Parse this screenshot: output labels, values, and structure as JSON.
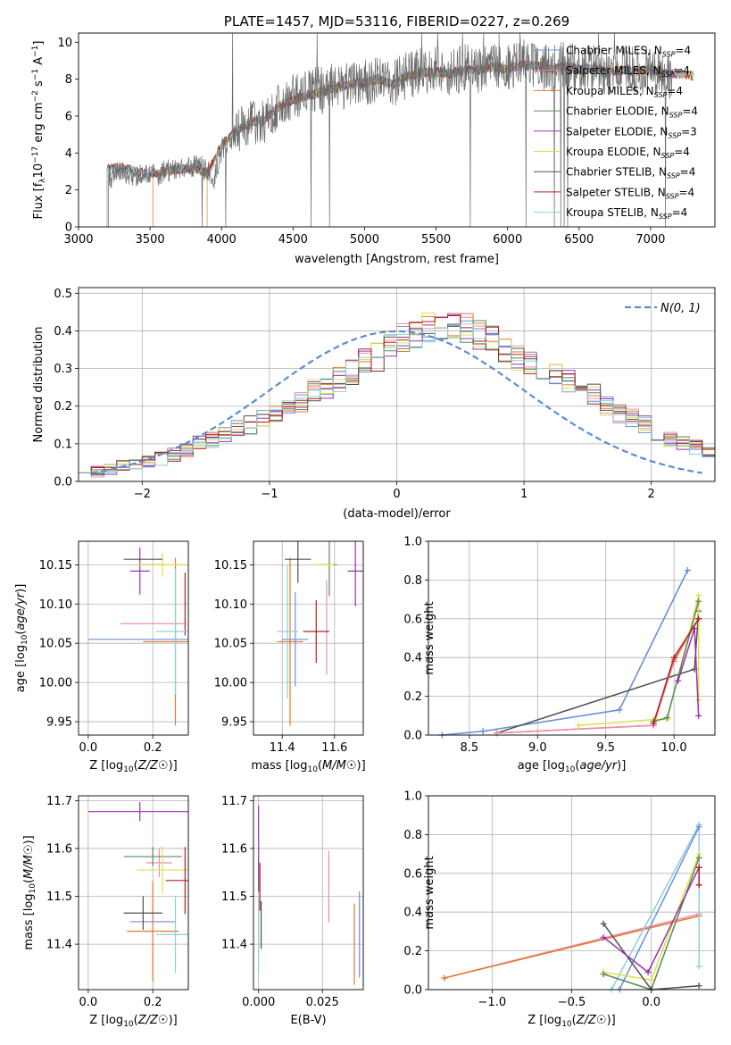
{
  "colors": {
    "chabrier_miles": "#6d8fdb",
    "salpeter_miles": "#f08cae",
    "kroupa_miles": "#e07a2e",
    "chabrier_elodie": "#5a8a5a",
    "salpeter_elodie": "#9b30b0",
    "kroupa_elodie": "#dede4a",
    "chabrier_stelib": "#505050",
    "salpeter_stelib": "#b02020",
    "kroupa_stelib": "#8cd0d8",
    "normal": "#5b8bd6"
  },
  "chart_data": [
    {
      "id": "spectrum",
      "type": "line",
      "title": "PLATE=1457, MJD=53116, FIBERID=0227, z=0.269",
      "xlabel": "wavelength [Angstrom, rest frame]",
      "ylabel": "Flux [f_λ 10^-17 erg cm^-2 s^-1 A^-1]",
      "xlim": [
        3000,
        7450
      ],
      "ylim": [
        0,
        10.5
      ],
      "xticks": [
        3000,
        3500,
        4000,
        4500,
        5000,
        5500,
        6000,
        6500,
        7000
      ],
      "yticks": [
        0,
        2,
        4,
        6,
        8,
        10
      ],
      "legend_position": "right",
      "legend": [
        {
          "key": "chabrier_miles",
          "label": "Chabrier MILES, N",
          "sub": "SSP",
          "tail": "=4"
        },
        {
          "key": "salpeter_miles",
          "label": "Salpeter MILES, N",
          "sub": "SSP",
          "tail": "=4"
        },
        {
          "key": "kroupa_miles",
          "label": "Kroupa MILES, N",
          "sub": "SSP",
          "tail": "=4"
        },
        {
          "key": "chabrier_elodie",
          "label": "Chabrier ELODIE, N",
          "sub": "SSP",
          "tail": "=4"
        },
        {
          "key": "salpeter_elodie",
          "label": "Salpeter ELODIE, N",
          "sub": "SSP",
          "tail": "=3"
        },
        {
          "key": "kroupa_elodie",
          "label": "Kroupa ELODIE, N",
          "sub": "SSP",
          "tail": "=4"
        },
        {
          "key": "chabrier_stelib",
          "label": "Chabrier STELIB, N",
          "sub": "SSP",
          "tail": "=4"
        },
        {
          "key": "salpeter_stelib",
          "label": "Salpeter STELIB, N",
          "sub": "SSP",
          "tail": "=4"
        },
        {
          "key": "kroupa_stelib",
          "label": "Kroupa STELIB, N",
          "sub": "SSP",
          "tail": "=4"
        }
      ],
      "data_continuum": [
        [
          3210,
          2.6
        ],
        [
          3300,
          2.9
        ],
        [
          3400,
          2.8
        ],
        [
          3500,
          2.7
        ],
        [
          3600,
          3.0
        ],
        [
          3700,
          3.1
        ],
        [
          3800,
          3.3
        ],
        [
          3870,
          3.2
        ],
        [
          3950,
          2.6
        ],
        [
          4000,
          4.2
        ],
        [
          4100,
          5.0
        ],
        [
          4200,
          5.6
        ],
        [
          4300,
          5.8
        ],
        [
          4400,
          6.6
        ],
        [
          4500,
          7.0
        ],
        [
          4600,
          7.3
        ],
        [
          4700,
          7.4
        ],
        [
          4800,
          7.6
        ],
        [
          4900,
          7.7
        ],
        [
          5000,
          7.8
        ],
        [
          5100,
          8.0
        ],
        [
          5200,
          7.8
        ],
        [
          5300,
          8.2
        ],
        [
          5400,
          8.4
        ],
        [
          5500,
          8.5
        ],
        [
          5600,
          8.3
        ],
        [
          5700,
          8.6
        ],
        [
          5800,
          8.5
        ],
        [
          5900,
          8.8
        ],
        [
          6000,
          8.6
        ],
        [
          6100,
          8.9
        ],
        [
          6200,
          8.7
        ],
        [
          6300,
          8.6
        ],
        [
          6400,
          8.8
        ],
        [
          6500,
          8.5
        ],
        [
          6600,
          8.7
        ],
        [
          6700,
          8.4
        ],
        [
          6800,
          8.6
        ],
        [
          6900,
          8.4
        ],
        [
          7000,
          8.5
        ],
        [
          7100,
          8.3
        ],
        [
          7150,
          8.2
        ]
      ],
      "model_continuum": [
        [
          3200,
          3.2
        ],
        [
          3300,
          3.2
        ],
        [
          3400,
          3.0
        ],
        [
          3500,
          2.9
        ],
        [
          3600,
          3.0
        ],
        [
          3700,
          3.1
        ],
        [
          3800,
          3.2
        ],
        [
          3900,
          2.9
        ],
        [
          4000,
          4.4
        ],
        [
          4100,
          5.2
        ],
        [
          4200,
          5.7
        ],
        [
          4300,
          5.8
        ],
        [
          4400,
          6.5
        ],
        [
          4500,
          6.9
        ],
        [
          4600,
          7.1
        ],
        [
          4700,
          7.3
        ],
        [
          4800,
          7.6
        ],
        [
          4900,
          7.7
        ],
        [
          5000,
          7.8
        ],
        [
          5100,
          8.0
        ],
        [
          5200,
          7.7
        ],
        [
          5300,
          8.2
        ],
        [
          5400,
          8.3
        ],
        [
          5500,
          8.4
        ],
        [
          5600,
          8.3
        ],
        [
          5700,
          8.5
        ],
        [
          5800,
          8.5
        ],
        [
          5900,
          8.7
        ],
        [
          6000,
          8.5
        ],
        [
          6100,
          8.8
        ],
        [
          6200,
          8.7
        ],
        [
          6300,
          8.6
        ],
        [
          6400,
          8.7
        ],
        [
          6500,
          8.5
        ],
        [
          6600,
          8.6
        ],
        [
          6700,
          8.4
        ],
        [
          6800,
          8.5
        ],
        [
          6900,
          8.4
        ],
        [
          7000,
          8.5
        ],
        [
          7100,
          8.3
        ],
        [
          7200,
          8.3
        ],
        [
          7300,
          8.2
        ]
      ]
    },
    {
      "id": "residual_hist",
      "type": "histogram",
      "xlabel": "(data-model)/error",
      "ylabel": "Normed distribution",
      "xlim": [
        -2.5,
        2.5
      ],
      "ylim": [
        0,
        0.515
      ],
      "xticks": [
        -2,
        -1,
        0,
        1,
        2
      ],
      "yticks": [
        0.0,
        0.1,
        0.2,
        0.3,
        0.4,
        0.5
      ],
      "grid": true,
      "legend_position": "top-right",
      "legend_label": "N(0, 1)",
      "bin_edges_from": -2.5,
      "bin_width": 0.1,
      "series_representative": [
        0.03,
        0.025,
        0.03,
        0.04,
        0.05,
        0.055,
        0.06,
        0.07,
        0.085,
        0.1,
        0.11,
        0.125,
        0.14,
        0.15,
        0.17,
        0.18,
        0.2,
        0.21,
        0.24,
        0.25,
        0.27,
        0.29,
        0.32,
        0.33,
        0.36,
        0.38,
        0.39,
        0.41,
        0.4,
        0.42,
        0.41,
        0.39,
        0.38,
        0.35,
        0.33,
        0.32,
        0.3,
        0.28,
        0.27,
        0.25,
        0.23,
        0.2,
        0.18,
        0.17,
        0.15,
        0.13,
        0.11,
        0.1,
        0.09,
        0.08
      ]
    },
    {
      "id": "age_vs_Z",
      "type": "errorbar",
      "xlabel": "Z [log10(Z/Z☉)]",
      "ylabel": "age [log10(age/yr)]",
      "xlim": [
        -0.03,
        0.31
      ],
      "ylim": [
        9.933,
        10.18
      ],
      "xticks": [
        0.0,
        0.2
      ],
      "yticks": [
        9.95,
        10.0,
        10.05,
        10.1,
        10.15
      ],
      "points": [
        {
          "key": "chabrier_miles",
          "x": 0.16,
          "xerr": 0.16,
          "y": 10.055,
          "yerr": 0.0
        },
        {
          "key": "salpeter_miles",
          "x": 0.2,
          "xerr": 0.1,
          "y": 10.075,
          "yerr": 0.0
        },
        {
          "key": "kroupa_miles",
          "x": 0.27,
          "xerr": 0.1,
          "y": 10.052,
          "yerr": 0.107
        },
        {
          "key": "chabrier_elodie",
          "x": 0.2,
          "xerr": 0.04,
          "y": 10.15,
          "yerr": 0.0
        },
        {
          "key": "salpeter_elodie",
          "x": 0.16,
          "xerr": 0.03,
          "y": 10.142,
          "yerr": 0.03
        },
        {
          "key": "kroupa_elodie",
          "x": 0.23,
          "xerr": 0.08,
          "y": 10.15,
          "yerr": 0.015
        },
        {
          "key": "chabrier_stelib",
          "x": 0.17,
          "xerr": 0.06,
          "y": 10.157,
          "yerr": 0.0
        },
        {
          "key": "salpeter_stelib",
          "x": 0.3,
          "xerr": 0.0,
          "y": 10.1,
          "yerr": 0.04
        },
        {
          "key": "kroupa_stelib",
          "x": 0.27,
          "xerr": 0.06,
          "y": 10.065,
          "yerr": 0.08
        }
      ]
    },
    {
      "id": "age_vs_mass",
      "type": "errorbar",
      "xlabel": "mass [log10(M/M☉)]",
      "ylabel": "",
      "xlim": [
        11.29,
        11.71
      ],
      "ylim": [
        9.933,
        10.18
      ],
      "xticks": [
        11.4,
        11.6
      ],
      "yticks": [
        9.95,
        10.0,
        10.05,
        10.1,
        10.15
      ],
      "points": [
        {
          "key": "chabrier_miles",
          "x": 11.45,
          "xerr": 0.05,
          "y": 10.055,
          "yerr": 0.06
        },
        {
          "key": "salpeter_miles",
          "x": 11.57,
          "xerr": 0.0,
          "y": 10.07,
          "yerr": 0.06
        },
        {
          "key": "kroupa_miles",
          "x": 11.43,
          "xerr": 0.05,
          "y": 10.052,
          "yerr": 0.107
        },
        {
          "key": "chabrier_elodie",
          "x": 11.58,
          "xerr": 0.03,
          "y": 10.15,
          "yerr": 0.04
        },
        {
          "key": "salpeter_elodie",
          "x": 11.68,
          "xerr": 0.03,
          "y": 10.142,
          "yerr": 0.045
        },
        {
          "key": "kroupa_elodie",
          "x": 11.56,
          "xerr": 0.04,
          "y": 10.15,
          "yerr": 0.0
        },
        {
          "key": "chabrier_stelib",
          "x": 11.46,
          "xerr": 0.05,
          "y": 10.157,
          "yerr": 0.03
        },
        {
          "key": "salpeter_stelib",
          "x": 11.53,
          "xerr": 0.05,
          "y": 10.065,
          "yerr": 0.04
        },
        {
          "key": "kroupa_stelib",
          "x": 11.42,
          "xerr": 0.04,
          "y": 10.065,
          "yerr": 0.085
        }
      ]
    },
    {
      "id": "mass_weight_vs_age",
      "type": "line",
      "xlabel": "age [log10(age/yr)]",
      "ylabel": "mass weight",
      "xlim": [
        8.2,
        10.3
      ],
      "ylim": [
        0,
        1
      ],
      "xticks": [
        8.5,
        9.0,
        9.5,
        10.0
      ],
      "yticks": [
        0.0,
        0.2,
        0.4,
        0.6,
        0.8,
        1.0
      ],
      "grid": true,
      "series": [
        {
          "key": "kroupa_stelib",
          "x": [
            8.3,
            8.6,
            9.6,
            10.1
          ],
          "y": [
            0.0,
            0.02,
            0.13,
            0.85
          ]
        },
        {
          "key": "chabrier_miles",
          "x": [
            8.3,
            8.6,
            9.6,
            10.1
          ],
          "y": [
            0.0,
            0.02,
            0.13,
            0.85
          ]
        },
        {
          "key": "chabrier_stelib",
          "x": [
            8.7,
            10.15,
            10.18
          ],
          "y": [
            0.01,
            0.34,
            0.64
          ]
        },
        {
          "key": "kroupa_miles",
          "x": [
            8.7,
            9.85,
            10.0,
            10.18
          ],
          "y": [
            0.01,
            0.05,
            0.38,
            0.6
          ]
        },
        {
          "key": "salpeter_miles",
          "x": [
            8.7,
            9.85,
            10.0,
            10.18
          ],
          "y": [
            0.01,
            0.05,
            0.39,
            0.6
          ]
        },
        {
          "key": "kroupa_elodie",
          "x": [
            9.3,
            9.85,
            9.95,
            10.18,
            10.18
          ],
          "y": [
            0.05,
            0.08,
            0.08,
            0.72,
            0.18
          ]
        },
        {
          "key": "chabrier_elodie",
          "x": [
            9.85,
            9.95,
            10.18
          ],
          "y": [
            0.07,
            0.09,
            0.69
          ]
        },
        {
          "key": "salpeter_elodie",
          "x": [
            10.03,
            10.15,
            10.18
          ],
          "y": [
            0.28,
            0.55,
            0.1
          ]
        },
        {
          "key": "salpeter_stelib",
          "x": [
            9.85,
            10.0,
            10.18
          ],
          "y": [
            0.06,
            0.4,
            0.6
          ]
        }
      ]
    },
    {
      "id": "mass_vs_Z",
      "type": "errorbar",
      "xlabel": "Z [log10(Z/Z☉)]",
      "ylabel": "mass [log10(M/M☉)]",
      "xlim": [
        -0.03,
        0.31
      ],
      "ylim": [
        11.305,
        11.71
      ],
      "xticks": [
        0.0,
        0.2
      ],
      "yticks": [
        11.4,
        11.5,
        11.6,
        11.7
      ],
      "points": [
        {
          "key": "chabrier_miles",
          "x": 0.2,
          "xerr": 0.07,
          "y": 11.447,
          "yerr": 0.0
        },
        {
          "key": "salpeter_miles",
          "x": 0.22,
          "xerr": 0.04,
          "y": 11.57,
          "yerr": 0.03
        },
        {
          "key": "kroupa_miles",
          "x": 0.2,
          "xerr": 0.08,
          "y": 11.427,
          "yerr": 0.105
        },
        {
          "key": "chabrier_elodie",
          "x": 0.2,
          "xerr": 0.09,
          "y": 11.583,
          "yerr": 0.02
        },
        {
          "key": "salpeter_elodie",
          "x": 0.16,
          "xerr": 0.16,
          "y": 11.677,
          "yerr": 0.02
        },
        {
          "key": "kroupa_elodie",
          "x": 0.23,
          "xerr": 0.08,
          "y": 11.555,
          "yerr": 0.05
        },
        {
          "key": "chabrier_stelib",
          "x": 0.17,
          "xerr": 0.06,
          "y": 11.465,
          "yerr": 0.035
        },
        {
          "key": "salpeter_stelib",
          "x": 0.3,
          "xerr": 0.06,
          "y": 11.533,
          "yerr": 0.07
        },
        {
          "key": "kroupa_stelib",
          "x": 0.27,
          "xerr": 0.06,
          "y": 11.42,
          "yerr": 0.08
        }
      ]
    },
    {
      "id": "mass_vs_ebv",
      "type": "errorbar",
      "xlabel": "E(B-V)",
      "ylabel": "",
      "xlim": [
        -0.002,
        0.041
      ],
      "ylim": [
        11.305,
        11.71
      ],
      "xticks": [
        0.0,
        0.025
      ],
      "xticklabels": [
        "0.000",
        "0.025"
      ],
      "yticks": [
        11.4,
        11.5,
        11.6,
        11.7
      ],
      "points": [
        {
          "key": "salpeter_elodie",
          "x": 0.0,
          "xerr": 0.0,
          "y": 11.6,
          "yerr": 0.09
        },
        {
          "key": "salpeter_stelib",
          "x": 0.0005,
          "xerr": 0.0,
          "y": 11.52,
          "yerr": 0.05
        },
        {
          "key": "kroupa_stelib",
          "x": 0.0,
          "xerr": 0.0,
          "y": 11.42,
          "yerr": 0.08
        },
        {
          "key": "chabrier_stelib",
          "x": 0.001,
          "xerr": 0.0,
          "y": 11.44,
          "yerr": 0.05
        },
        {
          "key": "salpeter_miles",
          "x": 0.0275,
          "xerr": 0.0,
          "y": 11.52,
          "yerr": 0.075
        },
        {
          "key": "kroupa_miles",
          "x": 0.0375,
          "xerr": 0.0,
          "y": 11.4,
          "yerr": 0.085
        },
        {
          "key": "chabrier_miles",
          "x": 0.0395,
          "xerr": 0.0,
          "y": 11.42,
          "yerr": 0.09
        }
      ]
    },
    {
      "id": "mass_weight_vs_Z",
      "type": "line",
      "xlabel": "Z [log10(Z/Z☉)]",
      "ylabel": "mass weight",
      "xlim": [
        -1.4,
        0.4
      ],
      "ylim": [
        0,
        1
      ],
      "xticks": [
        -1.0,
        -0.5,
        0.0
      ],
      "xticklabels": [
        "−1.0",
        "−0.5",
        "0.0"
      ],
      "yticks": [
        0.0,
        0.2,
        0.4,
        0.6,
        0.8,
        1.0
      ],
      "grid": true,
      "series": [
        {
          "key": "salpeter_miles",
          "x": [
            -1.3,
            0.3
          ],
          "y": [
            0.06,
            0.39
          ]
        },
        {
          "key": "kroupa_miles",
          "x": [
            -1.3,
            0.3
          ],
          "y": [
            0.06,
            0.38
          ]
        },
        {
          "key": "kroupa_stelib",
          "x": [
            -0.25,
            0.3,
            0.3
          ],
          "y": [
            0.0,
            0.85,
            0.12
          ]
        },
        {
          "key": "chabrier_miles",
          "x": [
            -0.2,
            0.3
          ],
          "y": [
            0.0,
            0.84
          ]
        },
        {
          "key": "kroupa_elodie",
          "x": [
            -0.3,
            0.0,
            0.3
          ],
          "y": [
            0.09,
            0.05,
            0.7
          ]
        },
        {
          "key": "chabrier_elodie",
          "x": [
            -0.3,
            0.0,
            0.3
          ],
          "y": [
            0.08,
            0.0,
            0.68
          ]
        },
        {
          "key": "chabrier_stelib",
          "x": [
            -0.3,
            0.0,
            0.3
          ],
          "y": [
            0.34,
            0.0,
            0.02
          ]
        },
        {
          "key": "salpeter_elodie",
          "x": [
            -0.3,
            -0.02,
            0.3
          ],
          "y": [
            0.27,
            0.09,
            0.63
          ]
        },
        {
          "key": "salpeter_stelib",
          "x": [
            0.3,
            0.3
          ],
          "y": [
            0.54,
            0.63
          ]
        }
      ]
    }
  ]
}
